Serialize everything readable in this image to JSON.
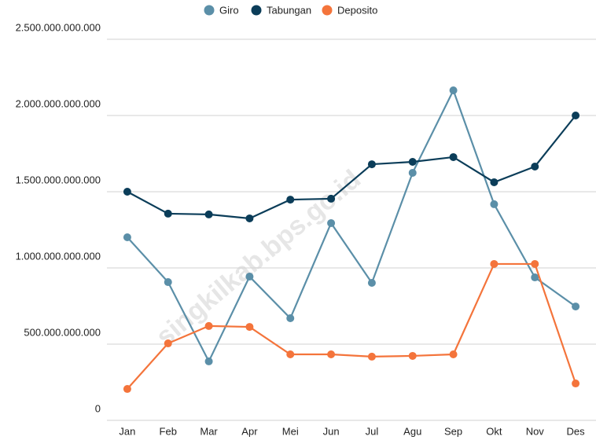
{
  "chart_data": {
    "type": "line",
    "watermark": "singkilkab.bps.go.id",
    "categories": [
      "Jan",
      "Feb",
      "Mar",
      "Apr",
      "Mei",
      "Jun",
      "Jul",
      "Agu",
      "Sep",
      "Okt",
      "Nov",
      "Des"
    ],
    "series": [
      {
        "name": "Giro",
        "color": "#5b8fa8",
        "values": [
          1201000000000,
          907000000000,
          387000000000,
          943000000000,
          670000000000,
          1294000000000,
          902000000000,
          1624000000000,
          2165000000000,
          1418000000000,
          938000000000,
          747000000000
        ]
      },
      {
        "name": "Tabungan",
        "color": "#0b3d59",
        "values": [
          1500000000000,
          1356000000000,
          1351000000000,
          1325000000000,
          1448000000000,
          1454000000000,
          1680000000000,
          1696000000000,
          1727000000000,
          1562000000000,
          1665000000000,
          2000000000000
        ]
      },
      {
        "name": "Deposito",
        "color": "#f4743b",
        "values": [
          206000000000,
          505000000000,
          619000000000,
          613000000000,
          433000000000,
          433000000000,
          418000000000,
          423000000000,
          433000000000,
          1026000000000,
          1026000000000,
          242000000000
        ]
      }
    ],
    "ylim": [
      0,
      2500000000000
    ],
    "yticks": [
      0,
      {
        "value": 500000000000,
        "label": "500.000.000.000"
      },
      {
        "value": 1000000000000,
        "label": "1.000.000.000.000"
      },
      {
        "value": 1500000000000,
        "label": "1.500.000.000.000"
      },
      {
        "value": 2000000000000,
        "label": "2.000.000.000.000"
      },
      {
        "value": 2500000000000,
        "label": "2.500.000.000.000"
      }
    ],
    "grid": true,
    "legend": "top"
  }
}
